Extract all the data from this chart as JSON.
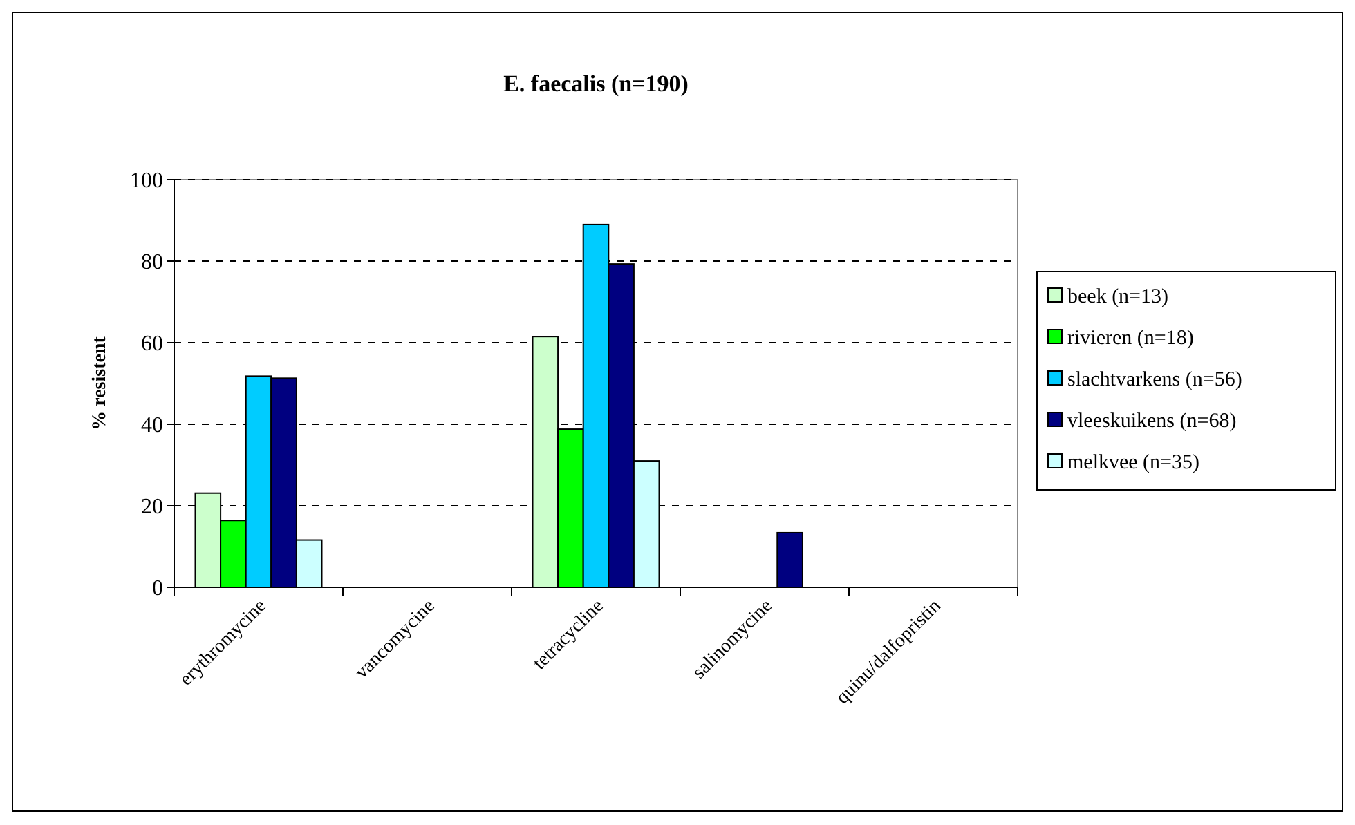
{
  "chart_data": {
    "type": "bar",
    "title": "E. faecalis (n=190)",
    "ylabel": "% resistent",
    "categories": [
      "erythromycine",
      "vancomycine",
      "tetracycline",
      "salinomycine",
      "quinu/dalfopristin"
    ],
    "series": [
      {
        "name": "beek (n=13)",
        "color": "#ccffcc",
        "values": [
          23.1,
          0,
          61.5,
          0,
          0
        ]
      },
      {
        "name": "rivieren (n=18)",
        "color": "#00ff00",
        "values": [
          16.4,
          0,
          38.8,
          0,
          0
        ]
      },
      {
        "name": "slachtvarkens (n=56)",
        "color": "#00ccff",
        "values": [
          51.8,
          0,
          89,
          0,
          0
        ]
      },
      {
        "name": "vleeskuikens (n=68)",
        "color": "#000080",
        "values": [
          51.3,
          0,
          79.3,
          13.4,
          0
        ]
      },
      {
        "name": "melkvee (n=35)",
        "color": "#ccffff",
        "values": [
          11.6,
          0,
          31,
          0,
          0
        ]
      }
    ],
    "ylim": [
      0,
      100
    ],
    "yticks": [
      0,
      20,
      40,
      60,
      80,
      100
    ],
    "grid": "y",
    "line_style": "dashed",
    "legend": "right"
  }
}
